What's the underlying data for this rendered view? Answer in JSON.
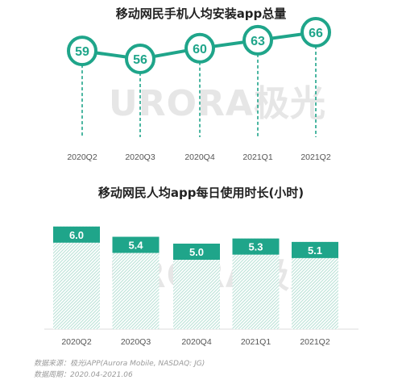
{
  "watermark": "URORA极光",
  "colors": {
    "teal": "#1fa58a",
    "hatch": "#bfe4da",
    "text": "#222222",
    "tick": "#555555"
  },
  "chart_data": [
    {
      "type": "line",
      "title": "移动网民手机人均安装app总量",
      "categories": [
        "2020Q2",
        "2020Q3",
        "2020Q4",
        "2021Q1",
        "2021Q2"
      ],
      "values": [
        59,
        56,
        60,
        63,
        66
      ],
      "data_labels": [
        "59",
        "56",
        "60",
        "63",
        "66"
      ]
    },
    {
      "type": "bar",
      "title": "移动网民人均app每日使用时长(小时)",
      "categories": [
        "2020Q2",
        "2020Q3",
        "2020Q4",
        "2021Q1",
        "2021Q2"
      ],
      "values": [
        6.0,
        5.4,
        5.0,
        5.3,
        5.1
      ],
      "data_labels": [
        "6.0",
        "5.4",
        "5.0",
        "5.3",
        "5.1"
      ]
    }
  ],
  "footer": {
    "source": "数据来源：极光iAPP(Aurora Mobile, NASDAQ: JG)",
    "period": "数据周期：2020.04-2021.06"
  }
}
